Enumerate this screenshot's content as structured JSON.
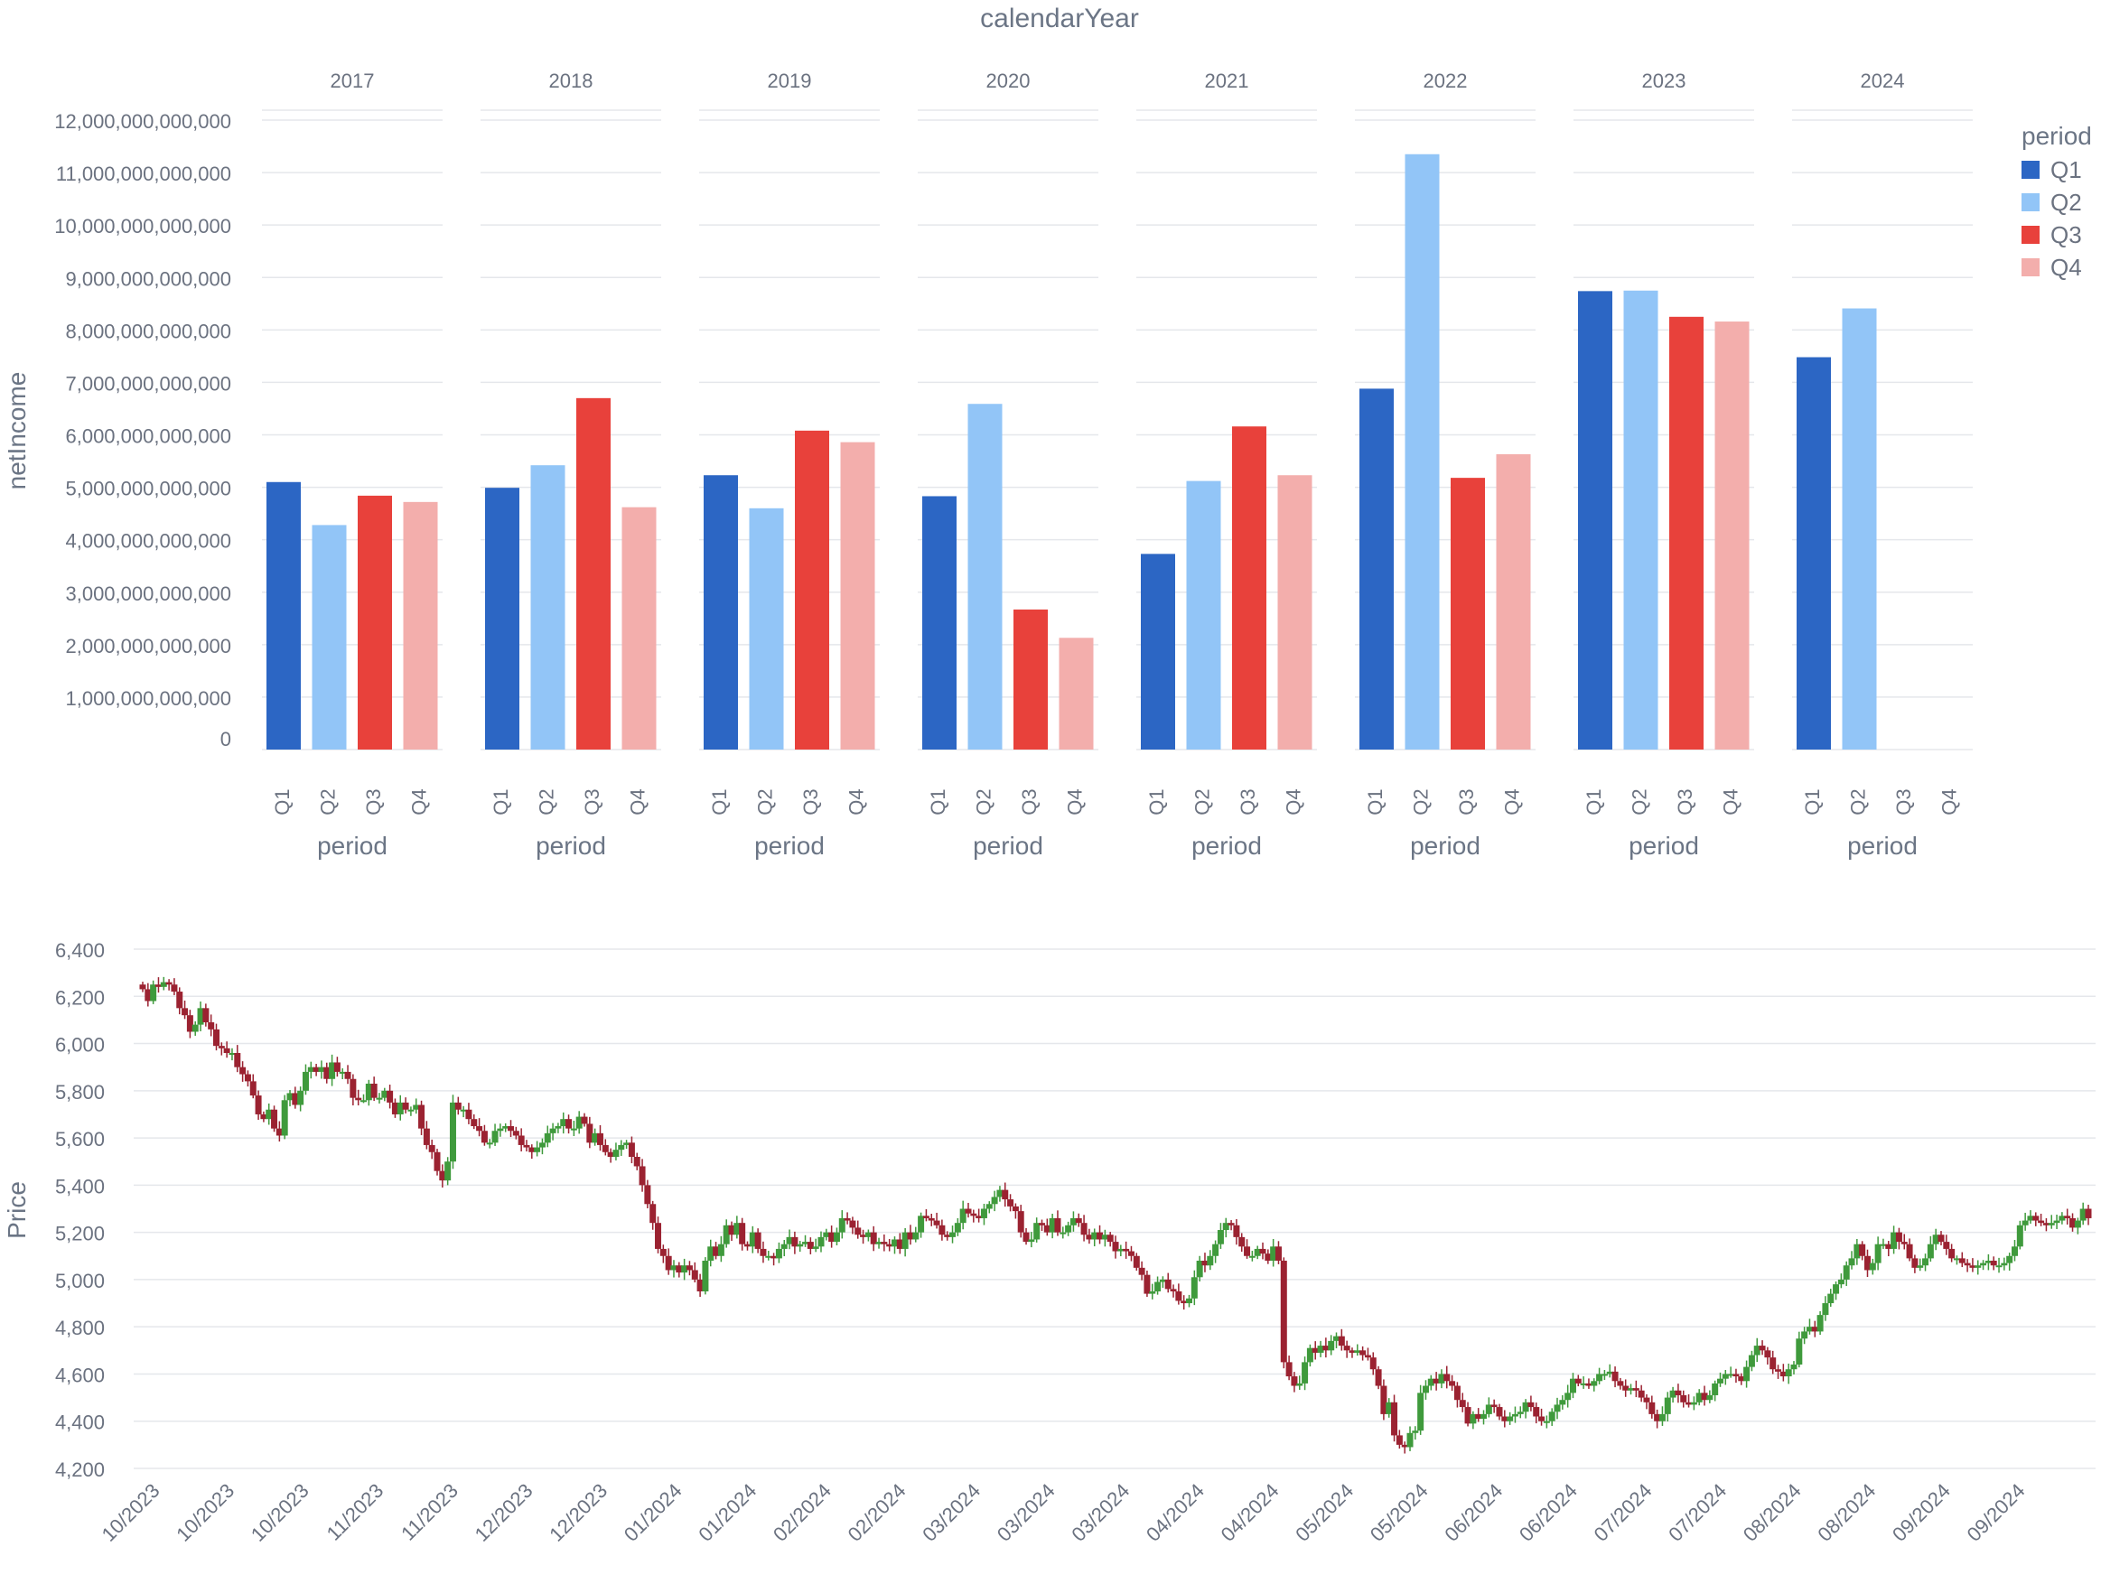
{
  "chart_data": [
    {
      "type": "bar",
      "title": "calendarYear",
      "facet_label": "calendarYear",
      "ylabel": "netIncome",
      "xlabel": "period",
      "ylim": [
        0,
        12000000000000
      ],
      "y_ticks": [
        0,
        1000000000000,
        2000000000000,
        3000000000000,
        4000000000000,
        5000000000000,
        6000000000000,
        7000000000000,
        8000000000000,
        9000000000000,
        10000000000000,
        11000000000000,
        12000000000000
      ],
      "y_tick_labels": [
        "0",
        "1,000,000,000,000",
        "2,000,000,000,000",
        "3,000,000,000,000",
        "4,000,000,000,000",
        "5,000,000,000,000",
        "6,000,000,000,000",
        "7,000,000,000,000",
        "8,000,000,000,000",
        "9,000,000,000,000",
        "10,000,000,000,000",
        "11,000,000,000,000",
        "12,000,000,000,000"
      ],
      "categories": [
        "Q1",
        "Q2",
        "Q3",
        "Q4"
      ],
      "legend": {
        "title": "period",
        "placement": "top-right",
        "entries": [
          {
            "label": "Q1",
            "color": "#2c66c4"
          },
          {
            "label": "Q2",
            "color": "#92c5f7"
          },
          {
            "label": "Q3",
            "color": "#e8413b"
          },
          {
            "label": "Q4",
            "color": "#f3aeac"
          }
        ]
      },
      "grid": true,
      "facets": [
        {
          "year": "2017",
          "values": [
            5100000000000,
            4280000000000,
            4840000000000,
            4720000000000
          ]
        },
        {
          "year": "2018",
          "values": [
            4990000000000,
            5420000000000,
            6700000000000,
            4620000000000
          ]
        },
        {
          "year": "2019",
          "values": [
            5230000000000,
            4600000000000,
            6080000000000,
            5860000000000
          ]
        },
        {
          "year": "2020",
          "values": [
            4830000000000,
            6590000000000,
            2670000000000,
            2130000000000
          ]
        },
        {
          "year": "2021",
          "values": [
            3730000000000,
            5120000000000,
            6160000000000,
            5230000000000
          ]
        },
        {
          "year": "2022",
          "values": [
            6880000000000,
            11350000000000,
            5180000000000,
            5630000000000
          ]
        },
        {
          "year": "2023",
          "values": [
            8740000000000,
            8750000000000,
            8250000000000,
            8160000000000
          ]
        },
        {
          "year": "2024",
          "values": [
            7480000000000,
            8410000000000,
            null,
            null
          ]
        }
      ]
    },
    {
      "type": "candlestick",
      "ylabel": "Price",
      "ylim": [
        4200,
        6400
      ],
      "y_ticks": [
        4200,
        4400,
        4600,
        4800,
        5000,
        5200,
        5400,
        5600,
        5800,
        6000,
        6200,
        6400
      ],
      "y_tick_labels": [
        "4,200",
        "4,400",
        "4,600",
        "4,800",
        "5,000",
        "5,200",
        "5,400",
        "5,600",
        "5,800",
        "6,000",
        "6,200",
        "6,400"
      ],
      "x_tick_labels": [
        "10/2023",
        "10/2023",
        "10/2023",
        "11/2023",
        "11/2023",
        "12/2023",
        "12/2023",
        "01/2024",
        "01/2024",
        "02/2024",
        "02/2024",
        "03/2024",
        "03/2024",
        "03/2024",
        "04/2024",
        "04/2024",
        "05/2024",
        "05/2024",
        "06/2024",
        "06/2024",
        "07/2024",
        "07/2024",
        "08/2024",
        "08/2024",
        "09/2024",
        "09/2024"
      ],
      "up_color": "#3f9a3c",
      "down_color": "#9b2231",
      "grid": true,
      "closes": [
        6230,
        6180,
        6250,
        6240,
        6260,
        6250,
        6220,
        6150,
        6120,
        6050,
        6080,
        6150,
        6090,
        6060,
        5990,
        5980,
        5960,
        5960,
        5900,
        5870,
        5840,
        5780,
        5700,
        5680,
        5720,
        5640,
        5610,
        5760,
        5790,
        5740,
        5800,
        5880,
        5900,
        5880,
        5900,
        5850,
        5920,
        5880,
        5880,
        5850,
        5770,
        5760,
        5760,
        5830,
        5770,
        5770,
        5800,
        5750,
        5700,
        5750,
        5720,
        5720,
        5740,
        5640,
        5570,
        5540,
        5460,
        5420,
        5500,
        5750,
        5720,
        5720,
        5680,
        5650,
        5630,
        5580,
        5580,
        5630,
        5640,
        5650,
        5630,
        5610,
        5570,
        5560,
        5540,
        5560,
        5580,
        5620,
        5640,
        5650,
        5680,
        5640,
        5640,
        5690,
        5660,
        5580,
        5620,
        5570,
        5540,
        5520,
        5550,
        5570,
        5580,
        5520,
        5480,
        5400,
        5320,
        5240,
        5130,
        5100,
        5040,
        5060,
        5030,
        5060,
        5040,
        5000,
        4950,
        5080,
        5140,
        5100,
        5150,
        5230,
        5190,
        5240,
        5150,
        5140,
        5200,
        5130,
        5100,
        5100,
        5090,
        5130,
        5150,
        5180,
        5140,
        5150,
        5160,
        5130,
        5140,
        5180,
        5200,
        5160,
        5200,
        5260,
        5250,
        5220,
        5190,
        5180,
        5200,
        5150,
        5160,
        5150,
        5140,
        5170,
        5130,
        5200,
        5170,
        5200,
        5270,
        5260,
        5250,
        5230,
        5190,
        5180,
        5200,
        5240,
        5300,
        5280,
        5270,
        5260,
        5300,
        5320,
        5350,
        5380,
        5340,
        5310,
        5290,
        5200,
        5160,
        5170,
        5240,
        5230,
        5200,
        5260,
        5200,
        5200,
        5230,
        5260,
        5240,
        5190,
        5170,
        5200,
        5170,
        5190,
        5160,
        5120,
        5130,
        5120,
        5100,
        5050,
        5020,
        4940,
        4950,
        4990,
        5000,
        4960,
        4950,
        4910,
        4900,
        4920,
        5010,
        5080,
        5060,
        5100,
        5150,
        5210,
        5240,
        5230,
        5180,
        5140,
        5100,
        5100,
        5130,
        5110,
        5080,
        5140,
        5080,
        4650,
        4590,
        4550,
        4560,
        4650,
        4710,
        4690,
        4720,
        4700,
        4740,
        4760,
        4720,
        4700,
        4690,
        4700,
        4680,
        4670,
        4620,
        4550,
        4430,
        4480,
        4340,
        4300,
        4290,
        4350,
        4360,
        4520,
        4550,
        4580,
        4560,
        4600,
        4570,
        4550,
        4490,
        4460,
        4390,
        4430,
        4410,
        4430,
        4470,
        4460,
        4420,
        4400,
        4420,
        4430,
        4440,
        4480,
        4460,
        4420,
        4400,
        4400,
        4440,
        4470,
        4490,
        4520,
        4580,
        4560,
        4560,
        4550,
        4570,
        4600,
        4600,
        4610,
        4570,
        4550,
        4530,
        4540,
        4530,
        4500,
        4480,
        4430,
        4400,
        4430,
        4500,
        4530,
        4510,
        4480,
        4470,
        4480,
        4520,
        4490,
        4510,
        4560,
        4580,
        4600,
        4600,
        4590,
        4570,
        4630,
        4680,
        4720,
        4700,
        4670,
        4620,
        4610,
        4590,
        4620,
        4640,
        4750,
        4780,
        4800,
        4780,
        4850,
        4900,
        4940,
        4980,
        5000,
        5060,
        5090,
        5150,
        5100,
        5040,
        5070,
        5150,
        5150,
        5130,
        5200,
        5160,
        5150,
        5090,
        5050,
        5060,
        5090,
        5150,
        5190,
        5160,
        5130,
        5090,
        5090,
        5070,
        5060,
        5050,
        5060,
        5070,
        5080,
        5060,
        5060,
        5070,
        5100,
        5140,
        5230,
        5250,
        5270,
        5250,
        5240,
        5230,
        5240,
        5250,
        5270,
        5260,
        5220,
        5250,
        5300,
        5260
      ]
    }
  ]
}
